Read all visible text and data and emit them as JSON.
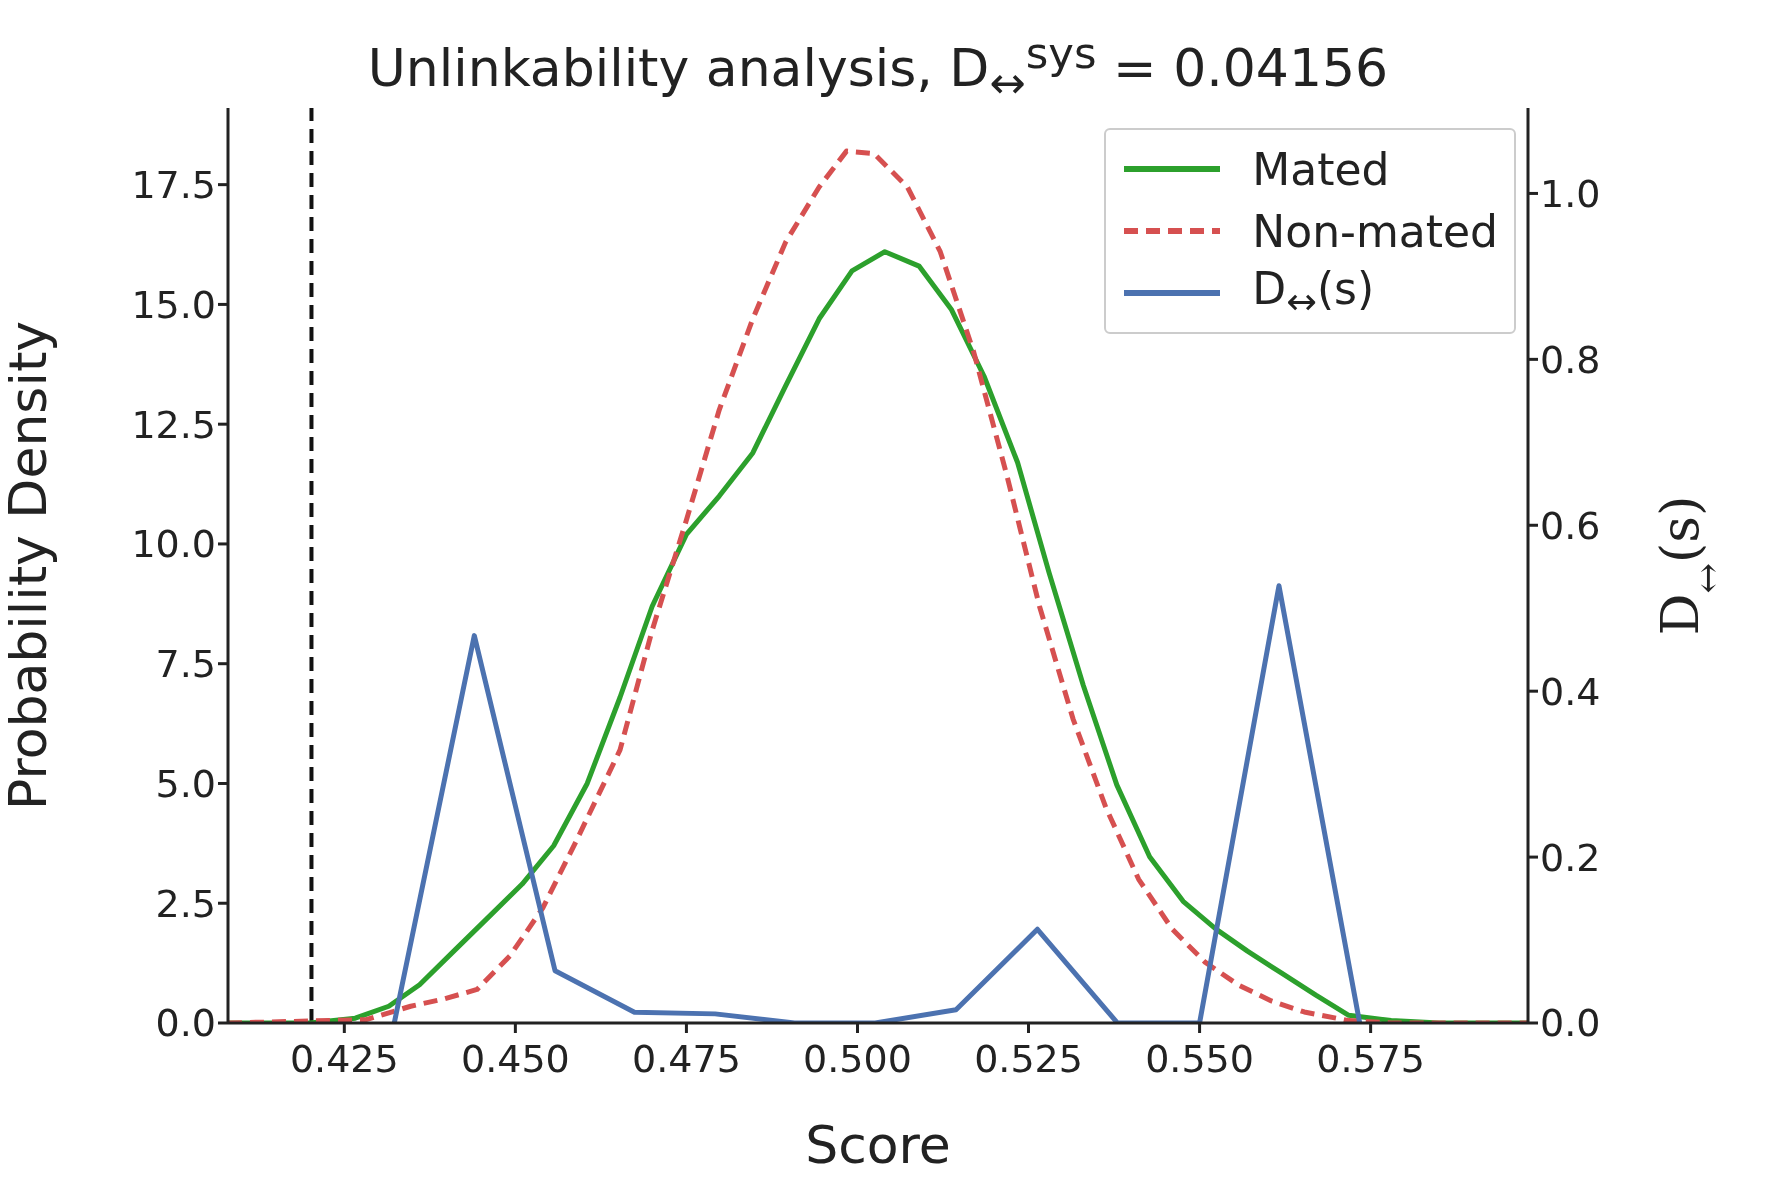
{
  "chart_data": {
    "type": "line",
    "title": "Unlinkability analysis, D$_{↔}$$^{sys}$ = 0.04156",
    "xlabel": "Score",
    "ylabel": "Probability Density",
    "y2label": "D$_{↔}$(s)",
    "xlim": [
      0.408,
      0.598
    ],
    "xticks": [
      0.425,
      {
        "value": 0.45,
        "label": "0.450"
      },
      0.475,
      {
        "value": 0.5,
        "label": "0.500"
      },
      0.525,
      {
        "value": 0.55,
        "label": "0.550"
      },
      0.575
    ],
    "ylim": [
      0,
      19.1
    ],
    "yticks": [
      {
        "value": 0,
        "label": "0.0"
      },
      {
        "value": 2.5,
        "label": "2.5"
      },
      {
        "value": 5,
        "label": "5.0"
      },
      {
        "value": 7.5,
        "label": "7.5"
      },
      {
        "value": 10,
        "label": "10.0"
      },
      {
        "value": 12.5,
        "label": "12.5"
      },
      {
        "value": 15,
        "label": "15.0"
      },
      {
        "value": 17.5,
        "label": "17.5"
      }
    ],
    "y2lim": [
      0,
      1.103
    ],
    "y2ticks": [
      {
        "value": 0,
        "label": "0.0"
      },
      {
        "value": 0.2,
        "label": "0.2"
      },
      {
        "value": 0.4,
        "label": "0.4"
      },
      {
        "value": 0.6,
        "label": "0.6"
      },
      {
        "value": 0.8,
        "label": "0.8"
      },
      {
        "value": 1,
        "label": "1.0"
      }
    ],
    "legend": "top right",
    "ref_lines": [
      {
        "axis": "x",
        "value": 0.4202,
        "color": "#111111",
        "line_style": "dashed"
      }
    ],
    "series": [
      {
        "name": "Mated",
        "color": "#2ca02c",
        "line_style": "solid",
        "x": [
          0.408,
          0.42,
          0.4266,
          0.4315,
          0.436,
          0.441,
          0.446,
          0.451,
          0.4556,
          0.4605,
          0.4653,
          0.47,
          0.475,
          0.4798,
          0.4847,
          0.4895,
          0.4944,
          0.4992,
          0.504,
          0.509,
          0.5137,
          0.5185,
          0.5234,
          0.528,
          0.533,
          0.5379,
          0.5427,
          0.5476,
          0.5524,
          0.557,
          0.562,
          0.567,
          0.5718,
          0.578,
          0.585,
          0.598
        ],
        "values": [
          0,
          0,
          0.1,
          0.35,
          0.8,
          1.5,
          2.2,
          2.9,
          3.7,
          5.0,
          6.8,
          8.7,
          10.2,
          11.0,
          11.9,
          13.3,
          14.7,
          15.7,
          16.1,
          15.8,
          14.9,
          13.5,
          11.7,
          9.4,
          7.05,
          4.97,
          3.47,
          2.54,
          1.96,
          1.5,
          1.04,
          0.58,
          0.16,
          0.05,
          0,
          0
        ]
      },
      {
        "name": "Non-mated",
        "color": "#d65050",
        "line_style": "dashed",
        "x": [
          0.408,
          0.4282,
          0.4347,
          0.4395,
          0.4444,
          0.4492,
          0.454,
          0.4589,
          0.4653,
          0.47,
          0.475,
          0.4798,
          0.4847,
          0.4895,
          0.4944,
          0.4984,
          0.5024,
          0.5073,
          0.5121,
          0.517,
          0.5218,
          0.5266,
          0.5315,
          0.5363,
          0.5411,
          0.546,
          0.5508,
          0.5556,
          0.5605,
          0.5653,
          0.5718,
          0.578,
          0.598
        ],
        "values": [
          0,
          0.07,
          0.35,
          0.5,
          0.7,
          1.4,
          2.4,
          3.8,
          5.7,
          8.2,
          10.5,
          12.8,
          14.7,
          16.3,
          17.45,
          18.2,
          18.15,
          17.45,
          16.1,
          14.0,
          11.45,
          8.7,
          6.35,
          4.5,
          3.0,
          1.96,
          1.27,
          0.8,
          0.46,
          0.23,
          0.05,
          0,
          0
        ]
      },
      {
        "name": "D$_{↔}$(s)",
        "color": "#4c72b0",
        "line_style": "solid",
        "axis": "y2",
        "x": [
          0.4323,
          0.444,
          0.4558,
          0.4674,
          0.4792,
          0.4908,
          0.5026,
          0.5144,
          0.5263,
          0.538,
          0.55,
          0.5616,
          0.5734
        ],
        "values": [
          0,
          0.467,
          0.063,
          0.013,
          0.011,
          0,
          0,
          0.016,
          0.113,
          0,
          0,
          0.527,
          0
        ]
      }
    ]
  }
}
